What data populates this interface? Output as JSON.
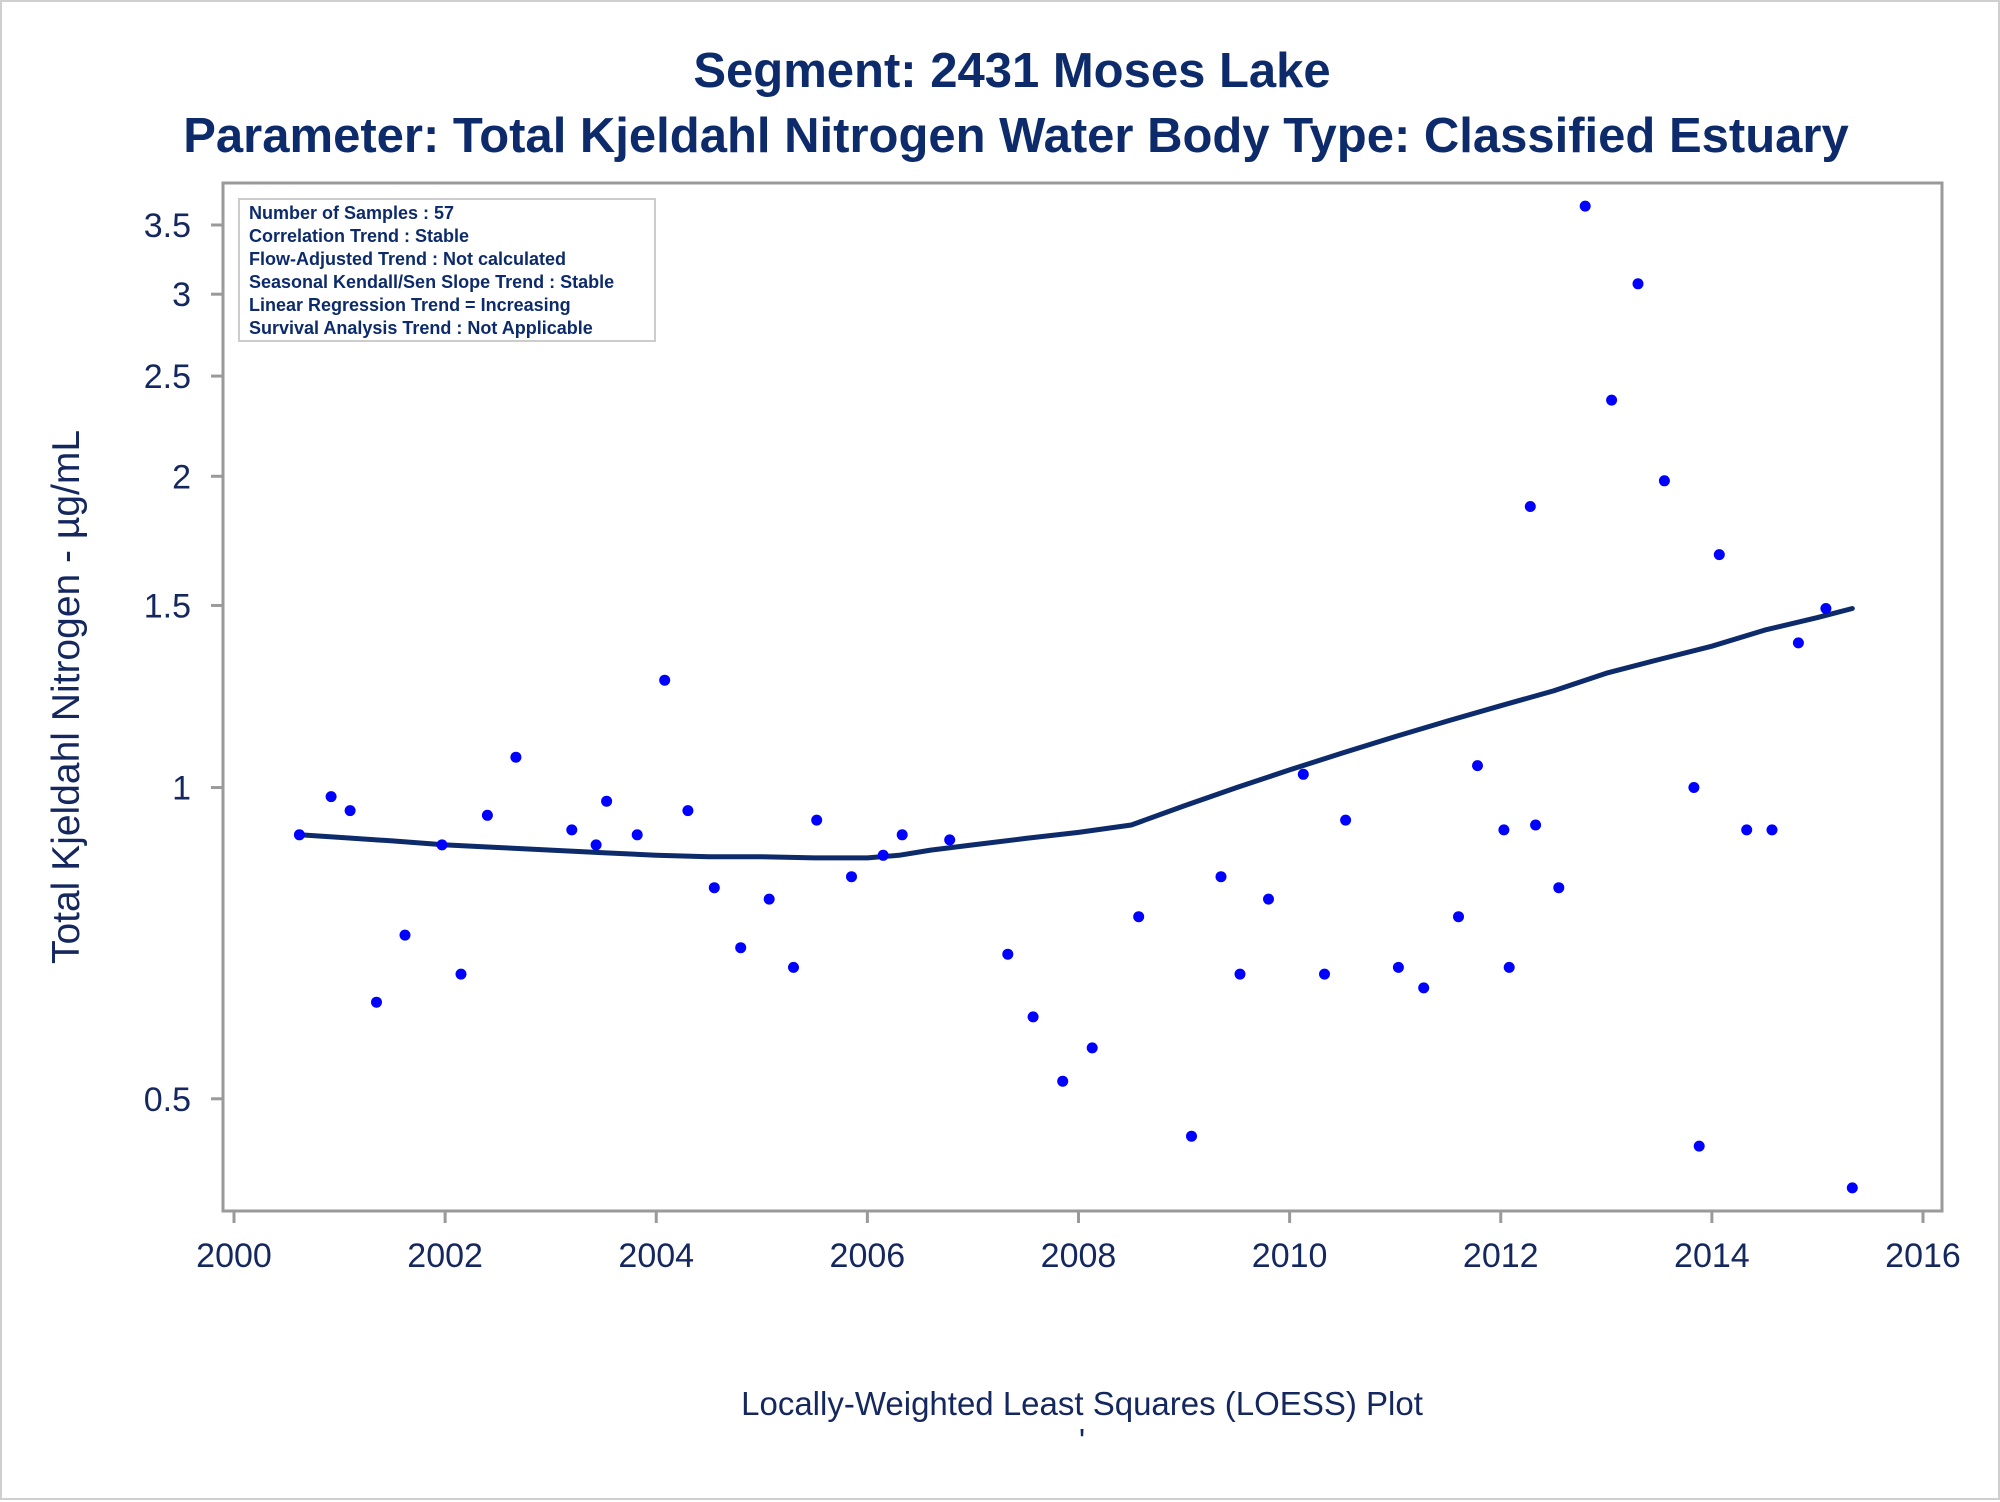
{
  "colors": {
    "title": "#0d2b6b",
    "text": "#14275e",
    "points": "#0000ff",
    "loess_line": "#0d2b6b",
    "axis": "#9a9a9a"
  },
  "chart_data": {
    "type": "scatter",
    "title": "Segment: 2431  Moses Lake",
    "subtitle": "Parameter: Total Kjeldahl Nitrogen   Water Body Type: Classified Estuary",
    "xlabel": "",
    "ylabel": "Total Kjeldahl Nitrogen -  µg/mL",
    "footer": "Locally-Weighted Least Squares (LOESS) Plot",
    "footer_mark": "'",
    "xlim": [
      2000,
      2016
    ],
    "ylim": [
      0.4,
      3.75
    ],
    "y_scale": "log",
    "grid": false,
    "x_ticks": [
      2000,
      2002,
      2004,
      2006,
      2008,
      2010,
      2012,
      2014,
      2016
    ],
    "y_ticks": [
      0.5,
      1,
      1.5,
      2,
      2.5,
      3,
      3.5
    ],
    "stats_box": {
      "placement": "top-left",
      "lines": [
        "Number of Samples : 57",
        "Correlation Trend : Stable",
        "Flow-Adjusted Trend : Not calculated",
        "Seasonal Kendall/Sen Slope Trend : Stable",
        "Linear Regression Trend = Increasing",
        "Survival Analysis Trend : Not Applicable"
      ]
    },
    "series": [
      {
        "kind": "points",
        "x": [
          2000.62,
          2000.92,
          2001.1,
          2001.35,
          2001.62,
          2001.97,
          2002.15,
          2002.4,
          2002.67,
          2003.2,
          2003.43,
          2003.53,
          2003.82,
          2004.08,
          2004.3,
          2004.55,
          2004.8,
          2005.07,
          2005.3,
          2005.52,
          2005.85,
          2006.15,
          2006.33,
          2006.78,
          2007.33,
          2007.57,
          2007.85,
          2008.13,
          2008.57,
          2009.07,
          2009.35,
          2009.53,
          2009.8,
          2010.13,
          2010.33,
          2010.53,
          2011.03,
          2011.27,
          2011.6,
          2011.78,
          2012.03,
          2012.08,
          2012.28,
          2012.33,
          2012.55,
          2012.8,
          2013.05,
          2013.3,
          2013.55,
          2013.83,
          2013.88,
          2014.07,
          2014.33,
          2014.57,
          2014.82,
          2015.08,
          2015.33
        ],
        "y": [
          0.9,
          0.98,
          0.95,
          0.62,
          0.72,
          0.88,
          0.66,
          0.94,
          1.07,
          0.91,
          0.88,
          0.97,
          0.9,
          1.27,
          0.95,
          0.8,
          0.7,
          0.78,
          0.67,
          0.93,
          0.82,
          0.86,
          0.9,
          0.89,
          0.69,
          0.6,
          0.52,
          0.56,
          0.75,
          0.46,
          0.82,
          0.66,
          0.78,
          1.03,
          0.66,
          0.93,
          0.67,
          0.64,
          0.75,
          1.05,
          0.91,
          0.67,
          1.87,
          0.92,
          0.8,
          3.65,
          2.37,
          3.07,
          1.98,
          1.0,
          0.45,
          1.68,
          0.91,
          0.91,
          1.38,
          1.49,
          0.41
        ]
      },
      {
        "kind": "loess",
        "x": [
          2000.62,
          2001.0,
          2001.5,
          2002.0,
          2002.5,
          2003.0,
          2003.5,
          2004.0,
          2004.5,
          2005.0,
          2005.5,
          2006.0,
          2006.3,
          2006.6,
          2007.0,
          2007.5,
          2008.0,
          2008.5,
          2009.0,
          2009.5,
          2010.0,
          2010.5,
          2011.0,
          2011.5,
          2012.0,
          2012.5,
          2013.0,
          2013.5,
          2014.0,
          2014.5,
          2015.0,
          2015.33
        ],
        "y": [
          0.9,
          0.895,
          0.888,
          0.88,
          0.875,
          0.87,
          0.865,
          0.86,
          0.857,
          0.857,
          0.855,
          0.855,
          0.86,
          0.87,
          0.88,
          0.893,
          0.905,
          0.92,
          0.96,
          1.0,
          1.04,
          1.08,
          1.12,
          1.16,
          1.2,
          1.24,
          1.29,
          1.33,
          1.37,
          1.42,
          1.46,
          1.49
        ]
      }
    ]
  }
}
